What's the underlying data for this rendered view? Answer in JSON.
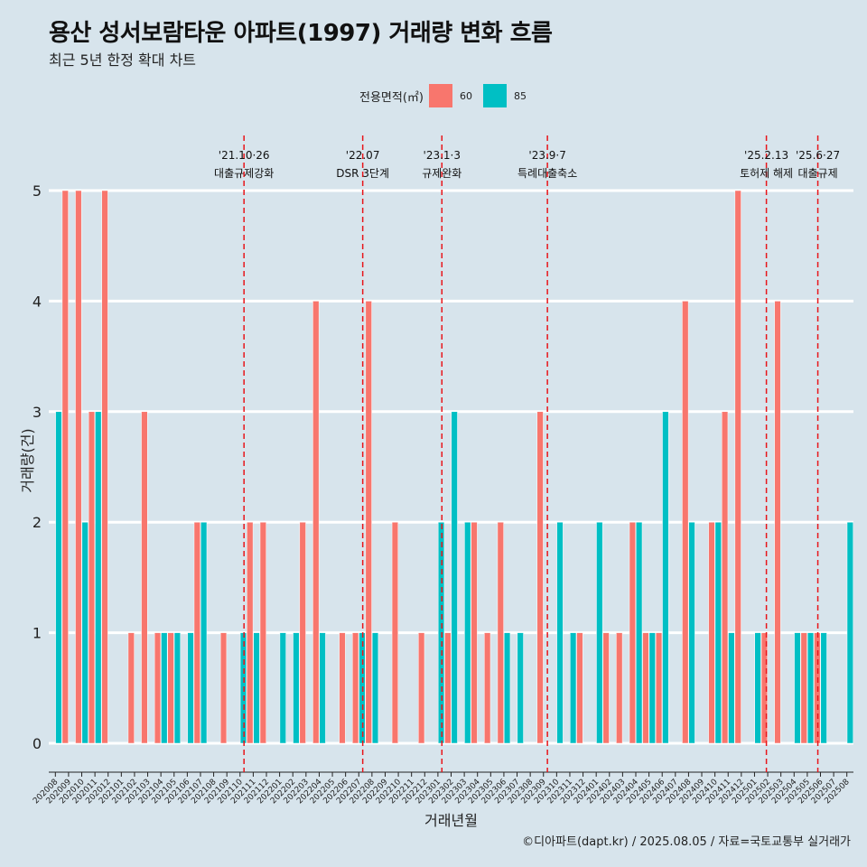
{
  "title": "용산 성서보람타운 아파트(1997) 거래량 변화 흐름",
  "subtitle": "최근 5년 한정 확대 차트",
  "legend_title": "전용면적(㎡)",
  "caption": "©디아파트(dapt.kr) / 2025.08.05 / 자료=국토교통부 실거래가",
  "colors": {
    "60": "#f8766d",
    "85": "#00bfc4",
    "background": "#d7e4ec",
    "vline": "#e8151a"
  },
  "chart_data": {
    "type": "bar",
    "xlabel": "거래년월",
    "ylabel": "거래량(건)",
    "ylim": [
      0,
      5
    ],
    "yticks": [
      0,
      1,
      2,
      3,
      4,
      5
    ],
    "categories": [
      "202008",
      "202009",
      "202010",
      "202011",
      "202012",
      "202101",
      "202102",
      "202103",
      "202104",
      "202105",
      "202106",
      "202107",
      "202108",
      "202109",
      "202110",
      "202111",
      "202112",
      "202201",
      "202202",
      "202203",
      "202204",
      "202205",
      "202206",
      "202207",
      "202208",
      "202209",
      "202210",
      "202211",
      "202212",
      "202301",
      "202302",
      "202303",
      "202304",
      "202305",
      "202306",
      "202307",
      "202308",
      "202309",
      "202310",
      "202311",
      "202312",
      "202401",
      "202402",
      "202403",
      "202404",
      "202405",
      "202406",
      "202407",
      "202408",
      "202409",
      "202410",
      "202411",
      "202412",
      "202501",
      "202502",
      "202503",
      "202504",
      "202505",
      "202506",
      "202507",
      "202508"
    ],
    "series": [
      {
        "name": "60",
        "values": [
          0,
          5,
          5,
          3,
          5,
          0,
          1,
          3,
          1,
          1,
          0,
          2,
          0,
          1,
          0,
          2,
          2,
          0,
          0,
          2,
          4,
          0,
          1,
          1,
          4,
          0,
          2,
          0,
          1,
          0,
          1,
          0,
          2,
          1,
          2,
          0,
          0,
          3,
          0,
          0,
          1,
          0,
          1,
          1,
          2,
          1,
          1,
          0,
          4,
          0,
          2,
          3,
          5,
          0,
          1,
          4,
          0,
          1,
          1,
          0,
          0
        ]
      },
      {
        "name": "85",
        "values": [
          3,
          0,
          2,
          3,
          0,
          0,
          0,
          0,
          1,
          1,
          1,
          2,
          0,
          0,
          1,
          1,
          0,
          1,
          1,
          0,
          1,
          0,
          0,
          1,
          1,
          0,
          0,
          0,
          0,
          2,
          3,
          2,
          0,
          0,
          1,
          1,
          0,
          0,
          2,
          1,
          0,
          2,
          0,
          0,
          2,
          1,
          3,
          0,
          2,
          0,
          2,
          1,
          0,
          1,
          0,
          0,
          1,
          1,
          1,
          0,
          2
        ]
      }
    ],
    "events": [
      {
        "date": "'21.10·26",
        "label": "대출규제강화",
        "index": 14.8
      },
      {
        "date": "'22.07",
        "label": "DSR 3단계",
        "index": 23.8
      },
      {
        "date": "'23.1·3",
        "label": "규제완화",
        "index": 29.8
      },
      {
        "date": "'23.9·7",
        "label": "특례대출축소",
        "index": 37.8
      },
      {
        "date": "'25.2.13",
        "label": "토허제 해제",
        "index": 54.4
      },
      {
        "date": "'25.6·27",
        "label": "대출규제",
        "index": 58.3
      }
    ]
  }
}
